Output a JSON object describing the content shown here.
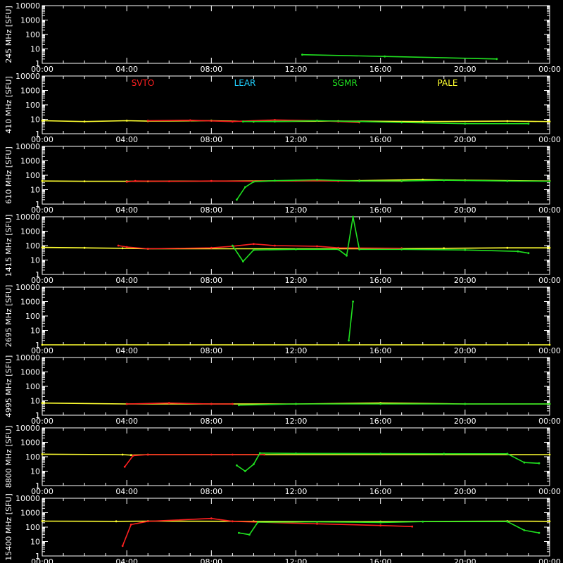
{
  "chart_data": {
    "type": "line",
    "yscale": "log",
    "ylim": [
      1,
      10000
    ],
    "x_ticks": [
      "00:00",
      "04:00",
      "08:00",
      "12:00",
      "16:00",
      "20:00",
      "00:00"
    ],
    "y_ticks": [
      "1",
      "10",
      "100",
      "1000",
      "10000"
    ],
    "legend": [
      {
        "name": "SVTO",
        "color": "#ff2020"
      },
      {
        "name": "LEAR",
        "color": "#20d0ff"
      },
      {
        "name": "SGMR",
        "color": "#20e020"
      },
      {
        "name": "PALE",
        "color": "#ffff30"
      }
    ],
    "colors": {
      "svto": "#ff2020",
      "lear": "#20d0ff",
      "sgmr": "#20e020",
      "pale": "#ffff30",
      "axis": "#ffffff"
    },
    "panels": [
      {
        "ylabel": "245 MHz [SFU]",
        "series": [
          {
            "station": "sgmr",
            "points": [
              [
                12.3,
                4
              ],
              [
                16.2,
                3
              ],
              [
                21.5,
                2
              ]
            ]
          }
        ]
      },
      {
        "ylabel": "410 MHz [SFU]",
        "series": [
          {
            "station": "pale",
            "points": [
              [
                0,
                8
              ],
              [
                2,
                7
              ],
              [
                4,
                8
              ],
              [
                5,
                7.5
              ],
              [
                8,
                8
              ],
              [
                10,
                7
              ],
              [
                14,
                7.5
              ],
              [
                18,
                7
              ],
              [
                22,
                7.5
              ],
              [
                24,
                7
              ]
            ]
          },
          {
            "station": "svto",
            "points": [
              [
                5,
                8
              ],
              [
                7,
                8.5
              ],
              [
                9,
                7
              ],
              [
                11,
                9
              ],
              [
                13,
                8
              ],
              [
                14,
                7
              ],
              [
                15,
                6
              ]
            ]
          },
          {
            "station": "sgmr",
            "points": [
              [
                9.5,
                7
              ],
              [
                11,
                7
              ],
              [
                13,
                8
              ],
              [
                15,
                7
              ],
              [
                17,
                6
              ],
              [
                20,
                5
              ],
              [
                23,
                5
              ]
            ]
          }
        ]
      },
      {
        "ylabel": "610 MHz [SFU]",
        "series": [
          {
            "station": "pale",
            "points": [
              [
                0,
                40
              ],
              [
                2,
                38
              ],
              [
                4,
                38
              ],
              [
                5,
                38
              ],
              [
                15,
                42
              ],
              [
                18,
                50
              ],
              [
                20,
                45
              ],
              [
                24,
                40
              ]
            ]
          },
          {
            "station": "svto",
            "points": [
              [
                4,
                35
              ],
              [
                4.4,
                40
              ],
              [
                6,
                38
              ],
              [
                8,
                40
              ],
              [
                10,
                38
              ],
              [
                12,
                42
              ],
              [
                14,
                40
              ],
              [
                17,
                38
              ]
            ]
          },
          {
            "station": "sgmr",
            "points": [
              [
                9.2,
                2
              ],
              [
                9.6,
                15
              ],
              [
                10,
                35
              ],
              [
                11,
                42
              ],
              [
                13,
                48
              ],
              [
                15,
                40
              ],
              [
                17,
                40
              ],
              [
                19,
                45
              ],
              [
                22,
                40
              ],
              [
                24,
                38
              ]
            ]
          }
        ]
      },
      {
        "ylabel": "1415 MHz [SFU]",
        "series": [
          {
            "station": "pale",
            "points": [
              [
                0,
                75
              ],
              [
                2,
                70
              ],
              [
                3.8,
                65
              ],
              [
                5,
                60
              ],
              [
                16,
                60
              ],
              [
                19,
                65
              ],
              [
                22,
                70
              ],
              [
                24,
                70
              ]
            ]
          },
          {
            "station": "svto",
            "points": [
              [
                3.6,
                100
              ],
              [
                4,
                80
              ],
              [
                5,
                60
              ],
              [
                8,
                70
              ],
              [
                9,
                90
              ],
              [
                10,
                130
              ],
              [
                11,
                100
              ],
              [
                13,
                90
              ],
              [
                14,
                70
              ],
              [
                17,
                65
              ]
            ]
          },
          {
            "station": "sgmr",
            "points": [
              [
                9,
                100
              ],
              [
                9.5,
                8
              ],
              [
                10,
                50
              ],
              [
                12,
                55
              ],
              [
                14,
                55
              ],
              [
                14.4,
                20
              ],
              [
                14.7,
                10000
              ],
              [
                15,
                55
              ],
              [
                17,
                55
              ],
              [
                20,
                50
              ],
              [
                22.5,
                40
              ],
              [
                23,
                30
              ]
            ]
          }
        ]
      },
      {
        "ylabel": "2695 MHz [SFU]",
        "series": [
          {
            "station": "pale",
            "points": [
              [
                0,
                1
              ],
              [
                24,
                1
              ]
            ]
          },
          {
            "station": "sgmr",
            "points": [
              [
                14.5,
                2
              ],
              [
                14.7,
                1000
              ]
            ]
          }
        ]
      },
      {
        "ylabel": "4995 MHz [SFU]",
        "series": [
          {
            "station": "pale",
            "points": [
              [
                0,
                7
              ],
              [
                4,
                6
              ],
              [
                8,
                6
              ],
              [
                12,
                6
              ],
              [
                16,
                7
              ],
              [
                20,
                6
              ],
              [
                24,
                6
              ]
            ]
          },
          {
            "station": "svto",
            "points": [
              [
                4,
                6
              ],
              [
                6,
                7
              ],
              [
                8,
                6
              ],
              [
                9,
                6
              ]
            ]
          },
          {
            "station": "sgmr",
            "points": [
              [
                9.3,
                5
              ],
              [
                12,
                6
              ],
              [
                16,
                6
              ],
              [
                20,
                6
              ],
              [
                24,
                6
              ]
            ]
          }
        ]
      },
      {
        "ylabel": "8800 MHz [SFU]",
        "series": [
          {
            "station": "pale",
            "points": [
              [
                0,
                150
              ],
              [
                3.8,
                140
              ],
              [
                4.2,
                130
              ],
              [
                5,
                140
              ],
              [
                24,
                140
              ]
            ]
          },
          {
            "station": "svto",
            "points": [
              [
                3.9,
                20
              ],
              [
                4.3,
                120
              ],
              [
                5,
                140
              ],
              [
                8,
                140
              ],
              [
                9,
                140
              ],
              [
                10.5,
                140
              ]
            ]
          },
          {
            "station": "sgmr",
            "points": [
              [
                9.2,
                25
              ],
              [
                9.6,
                10
              ],
              [
                10,
                30
              ],
              [
                10.3,
                180
              ],
              [
                12,
                170
              ],
              [
                16,
                165
              ],
              [
                19,
                160
              ],
              [
                22,
                160
              ],
              [
                22.8,
                40
              ],
              [
                23.5,
                35
              ]
            ]
          }
        ]
      },
      {
        "ylabel": "15400 MHz [SFU]",
        "series": [
          {
            "station": "pale",
            "points": [
              [
                0,
                260
              ],
              [
                3.5,
                250
              ],
              [
                5,
                260
              ],
              [
                10,
                250
              ],
              [
                16,
                240
              ],
              [
                22,
                260
              ],
              [
                24,
                250
              ]
            ]
          },
          {
            "station": "svto",
            "points": [
              [
                3.8,
                5
              ],
              [
                4.2,
                150
              ],
              [
                5,
                250
              ],
              [
                8,
                400
              ],
              [
                9,
                250
              ],
              [
                13,
                170
              ],
              [
                16,
                130
              ],
              [
                17.5,
                110
              ]
            ]
          },
          {
            "station": "sgmr",
            "points": [
              [
                9.3,
                40
              ],
              [
                9.8,
                30
              ],
              [
                10.2,
                220
              ],
              [
                13,
                230
              ],
              [
                16,
                210
              ],
              [
                18,
                240
              ],
              [
                22,
                240
              ],
              [
                22.8,
                60
              ],
              [
                23.5,
                40
              ]
            ]
          }
        ]
      }
    ]
  }
}
